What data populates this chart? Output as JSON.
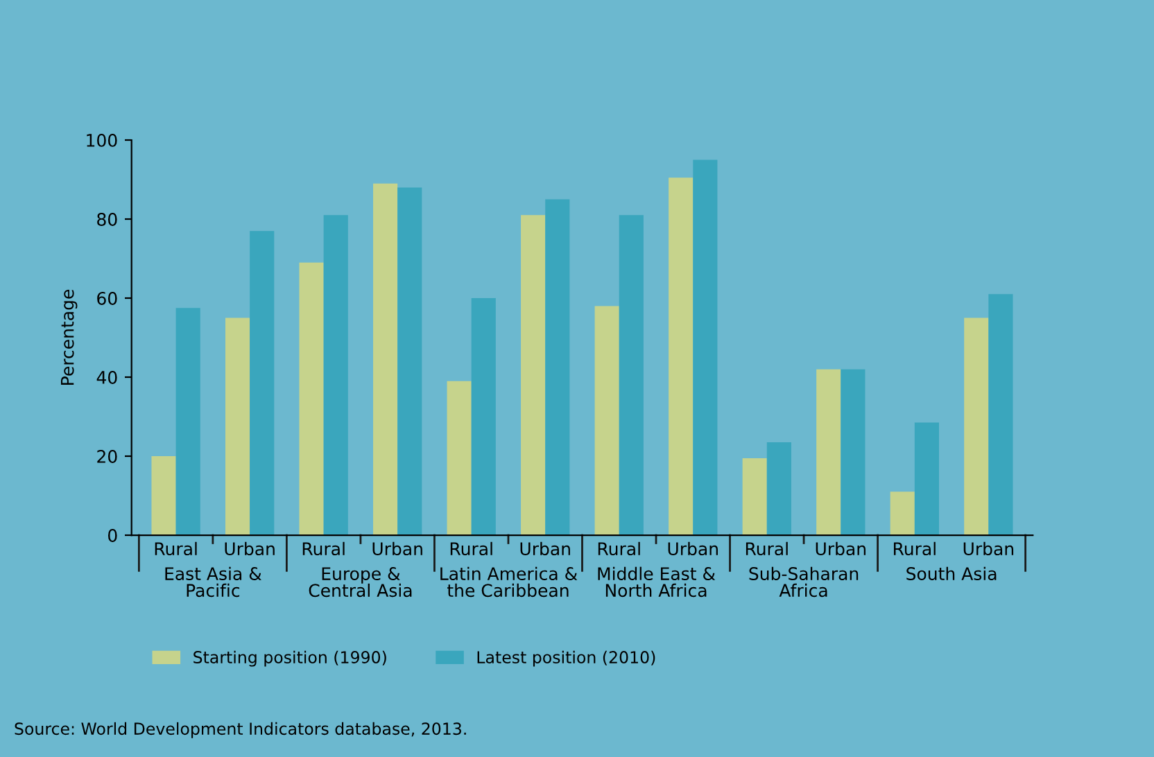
{
  "chart_data": {
    "type": "bar",
    "ylabel": "Percentage",
    "categories": [
      "Rural",
      "Urban",
      "Rural",
      "Urban",
      "Rural",
      "Urban",
      "Rural",
      "Urban",
      "Rural",
      "Urban",
      "Rural",
      "Urban"
    ],
    "series": [
      {
        "name": "Starting position (1990)",
        "color": "#c6d38c",
        "values": [
          20,
          55,
          69,
          89,
          39,
          81,
          58,
          90.5,
          19.5,
          42,
          11,
          55
        ]
      },
      {
        "name": "Latest position (2010)",
        "color": "#3aa6bd",
        "values": [
          57.5,
          77,
          81,
          88,
          60,
          85,
          81,
          95,
          23.5,
          42,
          28.5,
          61
        ]
      }
    ],
    "ylim": [
      0,
      100
    ],
    "yticks": [
      0,
      20,
      40,
      60,
      80,
      100
    ],
    "grid": false,
    "legend": "bottom left",
    "annotations": [
      "East Asia &\nPacific",
      "Europe &\nCentral Asia",
      "Latin America &\nthe Caribbean",
      "Middle East &\nNorth Africa",
      "Sub-Saharan\nAfrica",
      "South Asia",
      "Source: World Development Indicators database, 2013."
    ]
  }
}
